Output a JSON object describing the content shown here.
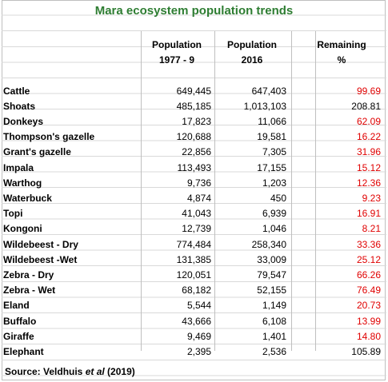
{
  "title": "Mara ecosystem population trends",
  "headers": {
    "col2_line1": "Population",
    "col2_line2": "1977 - 9",
    "col3_line1": "Population",
    "col3_line2": "2016",
    "col4_line1": "Remaining",
    "col4_line2": "%"
  },
  "rows": [
    {
      "name": "Cattle",
      "pop1977": "649,445",
      "pop2016": "647,403",
      "remaining": "99.69",
      "red": true
    },
    {
      "name": "Shoats",
      "pop1977": "485,185",
      "pop2016": "1,013,103",
      "remaining": "208.81",
      "red": false
    },
    {
      "name": "Donkeys",
      "pop1977": "17,823",
      "pop2016": "11,066",
      "remaining": "62.09",
      "red": true
    },
    {
      "name": "Thompson's gazelle",
      "pop1977": "120,688",
      "pop2016": "19,581",
      "remaining": "16.22",
      "red": true
    },
    {
      "name": "Grant's gazelle",
      "pop1977": "22,856",
      "pop2016": "7,305",
      "remaining": "31.96",
      "red": true
    },
    {
      "name": "Impala",
      "pop1977": "113,493",
      "pop2016": "17,155",
      "remaining": "15.12",
      "red": true
    },
    {
      "name": "Warthog",
      "pop1977": "9,736",
      "pop2016": "1,203",
      "remaining": "12.36",
      "red": true
    },
    {
      "name": "Waterbuck",
      "pop1977": "4,874",
      "pop2016": "450",
      "remaining": "9.23",
      "red": true
    },
    {
      "name": "Topi",
      "pop1977": "41,043",
      "pop2016": "6,939",
      "remaining": "16.91",
      "red": true
    },
    {
      "name": "Kongoni",
      "pop1977": "12,739",
      "pop2016": "1,046",
      "remaining": "8.21",
      "red": true
    },
    {
      "name": "Wildebeest - Dry",
      "pop1977": "774,484",
      "pop2016": "258,340",
      "remaining": "33.36",
      "red": true
    },
    {
      "name": "Wildebeest -Wet",
      "pop1977": "131,385",
      "pop2016": "33,009",
      "remaining": "25.12",
      "red": true
    },
    {
      "name": "Zebra - Dry",
      "pop1977": "120,051",
      "pop2016": "79,547",
      "remaining": "66.26",
      "red": true
    },
    {
      "name": "Zebra - Wet",
      "pop1977": "68,182",
      "pop2016": "52,155",
      "remaining": "76.49",
      "red": true
    },
    {
      "name": "Eland",
      "pop1977": "5,544",
      "pop2016": "1,149",
      "remaining": "20.73",
      "red": true
    },
    {
      "name": "Buffalo",
      "pop1977": "43,666",
      "pop2016": "6,108",
      "remaining": "13.99",
      "red": true
    },
    {
      "name": "Giraffe",
      "pop1977": "9,469",
      "pop2016": "1,401",
      "remaining": "14.80",
      "red": true
    },
    {
      "name": "Elephant",
      "pop1977": "2,395",
      "pop2016": "2,536",
      "remaining": "105.89",
      "red": false
    }
  ],
  "source": {
    "prefix": "Source: Veldhuis ",
    "italic": "et al",
    "suffix": " (2019)"
  },
  "colors": {
    "title": "#2e7d32",
    "decline": "#e00000"
  }
}
